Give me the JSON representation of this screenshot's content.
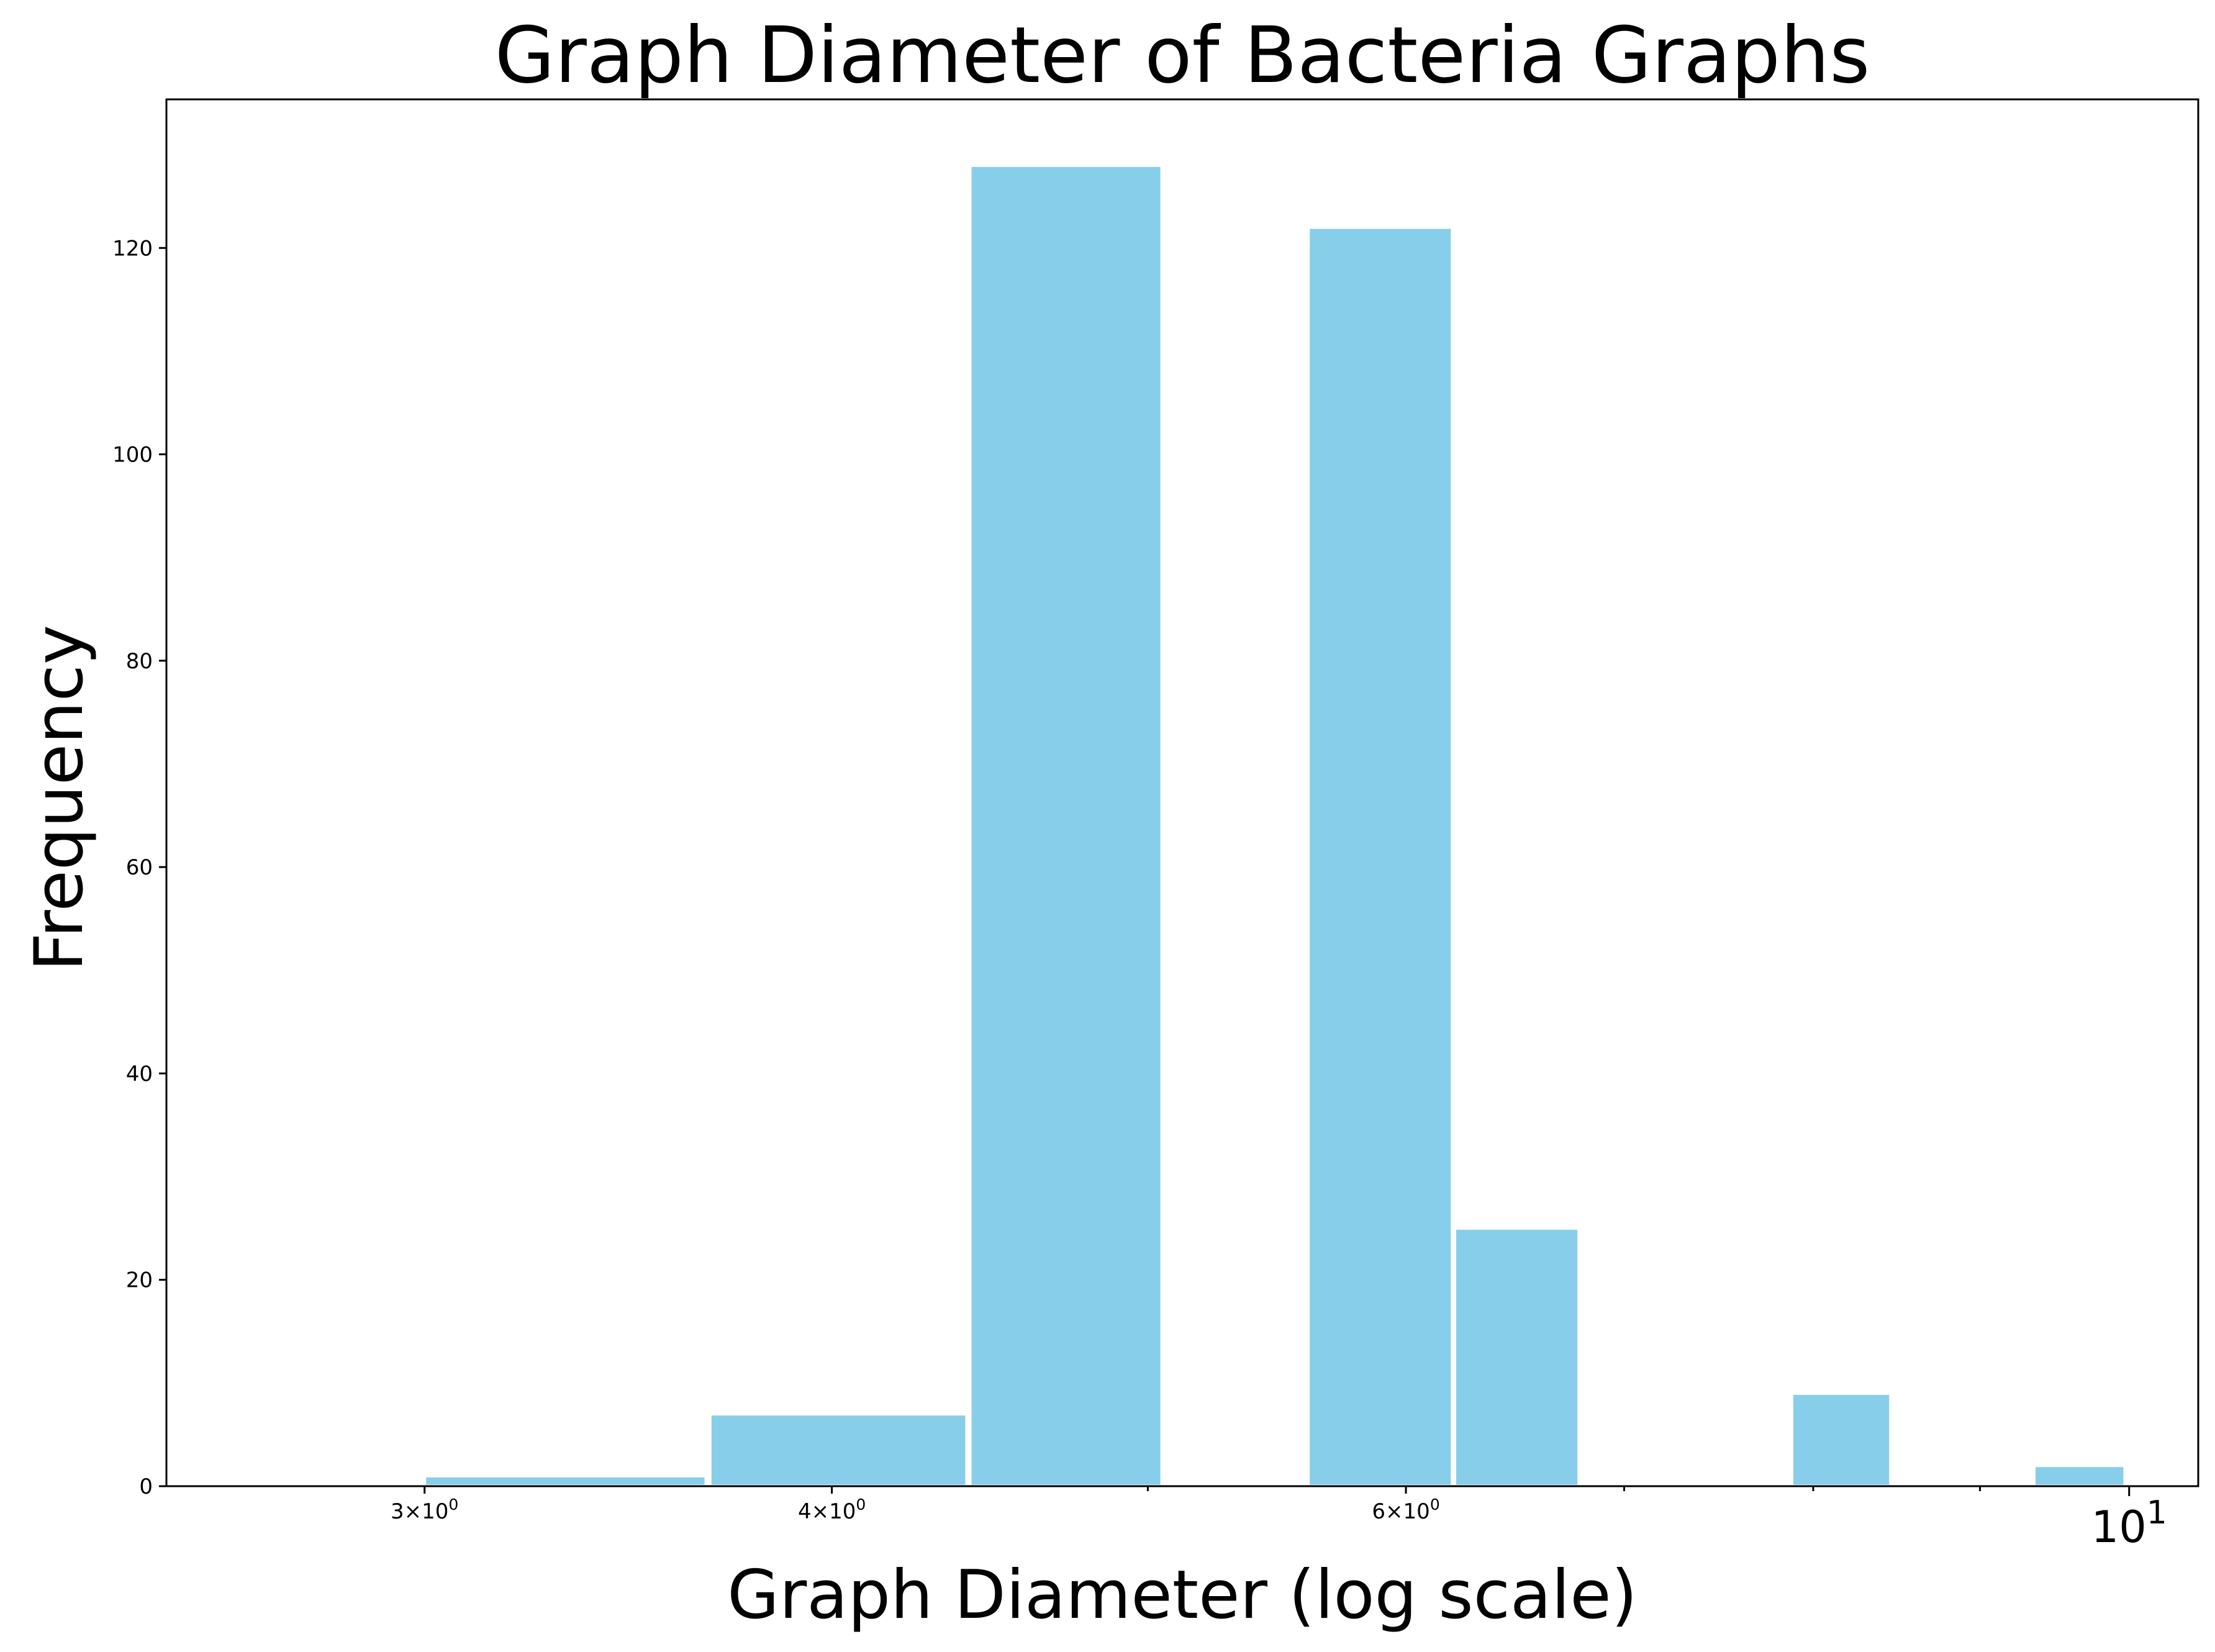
{
  "chart_data": {
    "type": "bar",
    "title": "Graph Diameter of Bacteria Graphs",
    "xlabel": "Graph Diameter (log scale)",
    "ylabel": "Frequency",
    "x_scale": "log",
    "xlim": [
      2.5,
      10.5
    ],
    "ylim": [
      0,
      134.4
    ],
    "grid": false,
    "bar_color": "#87ceeb",
    "bins": [
      {
        "x0": 3.0,
        "x1": 3.66,
        "value": 1
      },
      {
        "x0": 3.67,
        "x1": 4.4,
        "value": 7
      },
      {
        "x0": 4.41,
        "x1": 5.05,
        "value": 128
      },
      {
        "x0": 5.6,
        "x1": 6.2,
        "value": 122
      },
      {
        "x0": 6.21,
        "x1": 6.78,
        "value": 25
      },
      {
        "x0": 7.88,
        "x1": 8.45,
        "value": 9
      },
      {
        "x0": 9.35,
        "x1": 9.97,
        "value": 2
      }
    ],
    "x_ticks": [
      {
        "value": 3,
        "base": "3",
        "times": "×",
        "mant": "10",
        "exp": "0"
      },
      {
        "value": 4,
        "base": "4",
        "times": "×",
        "mant": "10",
        "exp": "0"
      },
      {
        "value": 6,
        "base": "6",
        "times": "×",
        "mant": "10",
        "exp": "0"
      },
      {
        "value": 10,
        "base": "",
        "times": "",
        "mant": "10",
        "exp": "1"
      }
    ],
    "x_minor_ticks": [
      5,
      7,
      8,
      9
    ],
    "y_ticks": [
      0,
      20,
      40,
      60,
      80,
      100,
      120
    ]
  }
}
